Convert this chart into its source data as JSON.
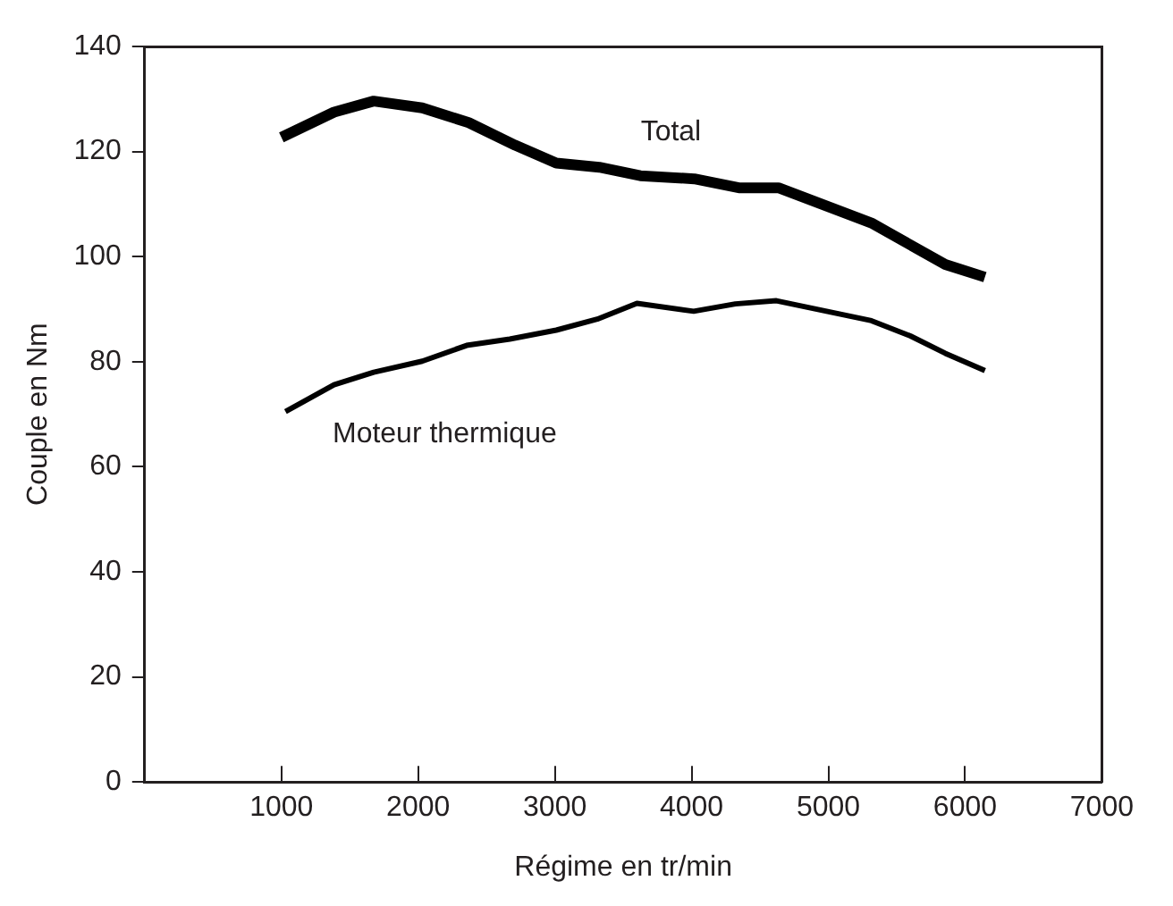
{
  "chart_data": {
    "type": "line",
    "xlabel": "Régime en tr/min",
    "ylabel": "Couple en Nm",
    "xlim": [
      0,
      7000
    ],
    "xticks": [
      1000,
      2000,
      3000,
      4000,
      5000,
      6000,
      7000
    ],
    "ylim": [
      0,
      140
    ],
    "yticks": [
      0,
      20,
      40,
      60,
      80,
      100,
      120,
      140
    ],
    "grid": false,
    "legend": false,
    "marker": "none",
    "line_style": "solid",
    "series": [
      {
        "name": "Total",
        "color": "#000000",
        "x": [
          1000,
          1385,
          1675,
          2030,
          2370,
          2710,
          3010,
          3325,
          3625,
          4020,
          4345,
          4635,
          5315,
          5855,
          6145
        ],
        "values": [
          122.7,
          127.5,
          129.6,
          128.3,
          125.5,
          121.2,
          117.8,
          117,
          115.4,
          114.8,
          113.1,
          113.1,
          106.4,
          98.5,
          96.1
        ]
      },
      {
        "name": "Moteur thermique",
        "color": "#000000",
        "x": [
          1030,
          1385,
          1675,
          2030,
          2355,
          2670,
          3010,
          3310,
          3600,
          4015,
          4320,
          4620,
          5315,
          5600,
          5855,
          6145
        ],
        "values": [
          70.5,
          75.6,
          78,
          80.1,
          83.1,
          84.3,
          86,
          88.1,
          91.1,
          89.6,
          91,
          91.6,
          87.8,
          84.9,
          81.6,
          78.3
        ]
      }
    ]
  }
}
